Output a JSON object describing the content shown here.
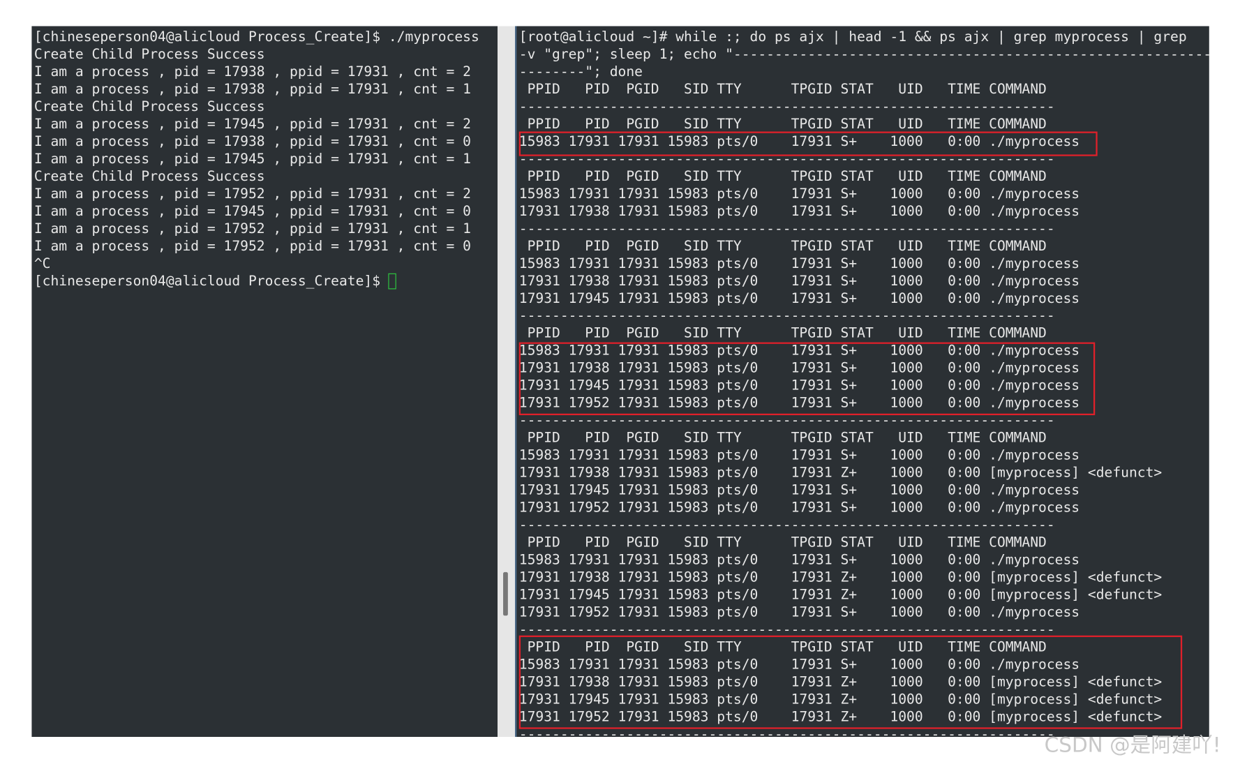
{
  "left_terminal": {
    "lines": [
      "[chineseperson04@alicloud Process_Create]$ ./myprocess",
      "Create Child Process Success",
      "I am a process , pid = 17938 , ppid = 17931 , cnt = 2",
      "I am a process , pid = 17938 , ppid = 17931 , cnt = 1",
      "Create Child Process Success",
      "I am a process , pid = 17945 , ppid = 17931 , cnt = 2",
      "I am a process , pid = 17938 , ppid = 17931 , cnt = 0",
      "I am a process , pid = 17945 , ppid = 17931 , cnt = 1",
      "Create Child Process Success",
      "I am a process , pid = 17952 , ppid = 17931 , cnt = 2",
      "I am a process , pid = 17945 , ppid = 17931 , cnt = 0",
      "I am a process , pid = 17952 , ppid = 17931 , cnt = 1",
      "I am a process , pid = 17952 , ppid = 17931 , cnt = 0",
      "^C",
      "[chineseperson04@alicloud Process_Create]$ "
    ]
  },
  "right_terminal": {
    "lines": [
      "[root@alicloud ~]# while :; do ps ajx | head -1 && ps ajx | grep myprocess | grep",
      "-v \"grep\"; sleep 1; echo \"-------------------------------------------------------------------",
      "--------\"; done",
      " PPID   PID  PGID   SID TTY      TPGID STAT   UID   TIME COMMAND",
      "-----------------------------------------------------------------",
      " PPID   PID  PGID   SID TTY      TPGID STAT   UID   TIME COMMAND",
      "15983 17931 17931 15983 pts/0    17931 S+    1000   0:00 ./myprocess",
      "-----------------------------------------------------------------",
      " PPID   PID  PGID   SID TTY      TPGID STAT   UID   TIME COMMAND",
      "15983 17931 17931 15983 pts/0    17931 S+    1000   0:00 ./myprocess",
      "17931 17938 17931 15983 pts/0    17931 S+    1000   0:00 ./myprocess",
      "-----------------------------------------------------------------",
      " PPID   PID  PGID   SID TTY      TPGID STAT   UID   TIME COMMAND",
      "15983 17931 17931 15983 pts/0    17931 S+    1000   0:00 ./myprocess",
      "17931 17938 17931 15983 pts/0    17931 S+    1000   0:00 ./myprocess",
      "17931 17945 17931 15983 pts/0    17931 S+    1000   0:00 ./myprocess",
      "-----------------------------------------------------------------",
      " PPID   PID  PGID   SID TTY      TPGID STAT   UID   TIME COMMAND",
      "15983 17931 17931 15983 pts/0    17931 S+    1000   0:00 ./myprocess",
      "17931 17938 17931 15983 pts/0    17931 S+    1000   0:00 ./myprocess",
      "17931 17945 17931 15983 pts/0    17931 S+    1000   0:00 ./myprocess",
      "17931 17952 17931 15983 pts/0    17931 S+    1000   0:00 ./myprocess",
      "-----------------------------------------------------------------",
      " PPID   PID  PGID   SID TTY      TPGID STAT   UID   TIME COMMAND",
      "15983 17931 17931 15983 pts/0    17931 S+    1000   0:00 ./myprocess",
      "17931 17938 17931 15983 pts/0    17931 Z+    1000   0:00 [myprocess] <defunct>",
      "17931 17945 17931 15983 pts/0    17931 S+    1000   0:00 ./myprocess",
      "17931 17952 17931 15983 pts/0    17931 S+    1000   0:00 ./myprocess",
      "-----------------------------------------------------------------",
      " PPID   PID  PGID   SID TTY      TPGID STAT   UID   TIME COMMAND",
      "15983 17931 17931 15983 pts/0    17931 S+    1000   0:00 ./myprocess",
      "17931 17938 17931 15983 pts/0    17931 Z+    1000   0:00 [myprocess] <defunct>",
      "17931 17945 17931 15983 pts/0    17931 Z+    1000   0:00 [myprocess] <defunct>",
      "17931 17952 17931 15983 pts/0    17931 S+    1000   0:00 ./myprocess",
      "-----------------------------------------------------------------",
      " PPID   PID  PGID   SID TTY      TPGID STAT   UID   TIME COMMAND",
      "15983 17931 17931 15983 pts/0    17931 S+    1000   0:00 ./myprocess",
      "17931 17938 17931 15983 pts/0    17931 Z+    1000   0:00 [myprocess] <defunct>",
      "17931 17945 17931 15983 pts/0    17931 Z+    1000   0:00 [myprocess] <defunct>",
      "17931 17952 17931 15983 pts/0    17931 Z+    1000   0:00 [myprocess] <defunct>",
      "-----------------------------------------------------------------"
    ]
  },
  "watermark": "CSDN @是阿建吖!"
}
